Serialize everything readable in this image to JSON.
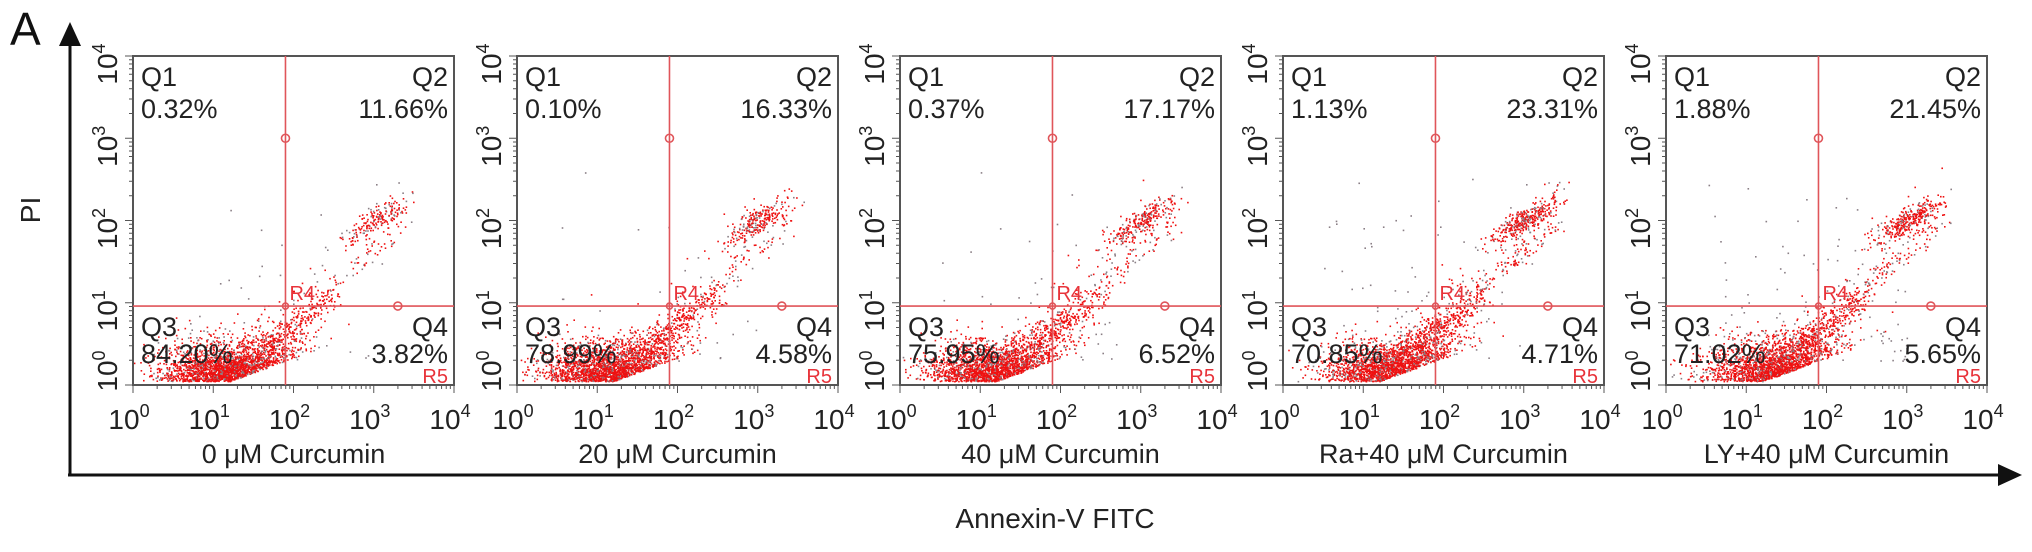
{
  "figure_label": "A",
  "y_axis_label": "PI",
  "x_axis_label": "Annexin-V FITC",
  "colors": {
    "events": "#ee1111",
    "sparse_events": "#8a7f86",
    "gate": "#e0555a",
    "frame": "#555555"
  },
  "chart_data": {
    "type": "scatter",
    "subtype": "flow-cytometry quadrant dot plots",
    "x_scale": "log",
    "y_scale": "log",
    "xlim": [
      1,
      10000
    ],
    "ylim": [
      1,
      10000
    ],
    "tick_base": "10",
    "tick_exponents": [
      "0",
      "1",
      "2",
      "3",
      "4"
    ],
    "gate_labels": [
      "R4",
      "R5"
    ],
    "quadrant_names": [
      "Q1",
      "Q2",
      "Q3",
      "Q4"
    ],
    "panels": [
      {
        "condition": "0 μM Curcumin",
        "Q1": "0.32%",
        "Q2": "11.66%",
        "Q3": "84.20%",
        "Q4": "3.82%"
      },
      {
        "condition": "20 μM Curcumin",
        "Q1": "0.10%",
        "Q2": "16.33%",
        "Q3": "78.99%",
        "Q4": "4.58%"
      },
      {
        "condition": "40 μM Curcumin",
        "Q1": "0.37%",
        "Q2": "17.17%",
        "Q3": "75.95%",
        "Q4": "6.52%"
      },
      {
        "condition": "Ra+40 μM Curcumin",
        "Q1": "1.13%",
        "Q2": "23.31%",
        "Q3": "70.85%",
        "Q4": "4.71%"
      },
      {
        "condition": "LY+40 μM Curcumin",
        "Q1": "1.88%",
        "Q2": "21.45%",
        "Q3": "71.02%",
        "Q4": "5.65%"
      }
    ]
  }
}
